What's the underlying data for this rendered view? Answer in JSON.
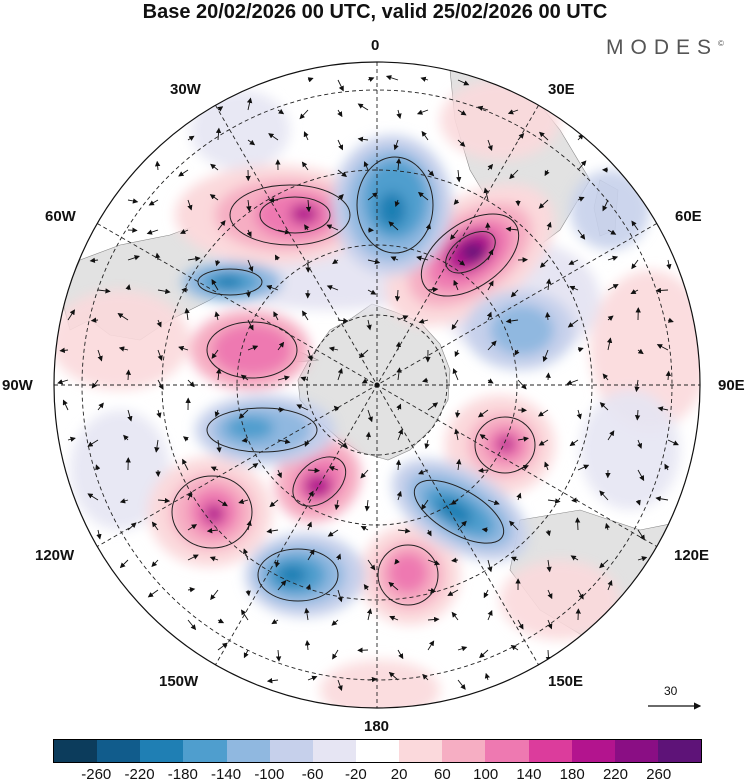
{
  "title": "Base 20/02/2026 00 UTC, valid 25/02/2026 00 UTC",
  "brand": "MODES",
  "brand_mark": "©",
  "longitude_labels": {
    "lon_0": "0",
    "lon_30e": "30E",
    "lon_60e": "60E",
    "lon_90e": "90E",
    "lon_120e": "120E",
    "lon_150e": "150E",
    "lon_180": "180",
    "lon_150w": "150W",
    "lon_120w": "120W",
    "lon_90w": "90W",
    "lon_60w": "60W",
    "lon_30w": "30W"
  },
  "reference_vector": {
    "label": "30"
  },
  "colorbar": {
    "colors": [
      "#0c3c5c",
      "#115c8c",
      "#1f7fb4",
      "#4f9ece",
      "#90b8e0",
      "#c6d0eb",
      "#e6e5f3",
      "#ffffff",
      "#fbd9dc",
      "#f6aec3",
      "#ee79b1",
      "#dc3c9c",
      "#b3148e",
      "#8a0e84",
      "#5e1378"
    ],
    "ticks": [
      "-260",
      "-220",
      "-180",
      "-140",
      "-100",
      "-60",
      "-20",
      "20",
      "60",
      "100",
      "140",
      "180",
      "220",
      "260"
    ]
  },
  "colors": {
    "land": "#e2e2e2",
    "background": "#ffffff"
  }
}
